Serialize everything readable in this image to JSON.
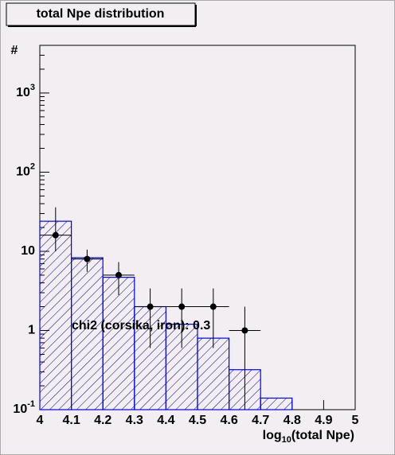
{
  "chart_data": {
    "type": "histogram",
    "title": "total Npe distribution",
    "ylabel": "#",
    "xlabel": {
      "base": "log",
      "subscript": "10",
      "rest": "(total Npe)"
    },
    "bins": [
      4.0,
      4.1,
      4.2,
      4.3,
      4.4,
      4.5,
      4.6,
      4.7,
      4.8
    ],
    "counts": [
      24,
      8.3,
      4.7,
      2.0,
      1.2,
      0.8,
      0.32,
      0.14
    ],
    "color": "#0000ff",
    "hatch_color": "#000080",
    "points": {
      "x": [
        4.05,
        4.15,
        4.25,
        4.35,
        4.45,
        4.55,
        4.65
      ],
      "values": [
        16,
        8,
        5,
        2,
        2,
        2,
        1
      ],
      "errors_high": [
        20,
        2.5,
        2.3,
        1.4,
        1.4,
        1.4,
        1
      ],
      "errors_low": [
        6,
        2.5,
        2.2,
        1.4,
        1.4,
        1.4,
        0.9
      ],
      "x_error": 0.05,
      "color": "#000000"
    },
    "annotation": "chi2 (corsika, iron): 0.3",
    "xlim": [
      4,
      5
    ],
    "ylim": [
      0.1,
      4000
    ],
    "log_y": true,
    "xticks": [
      4,
      4.1,
      4.2,
      4.3,
      4.4,
      4.5,
      4.6,
      4.7,
      4.8,
      4.9,
      5
    ],
    "yticks": [
      {
        "value": 0.1,
        "label": "10",
        "exponent": "-1"
      },
      1,
      10,
      {
        "value": 100,
        "label": "10",
        "exponent": "2"
      },
      {
        "value": 1000,
        "label": "10",
        "exponent": "3"
      }
    ]
  }
}
